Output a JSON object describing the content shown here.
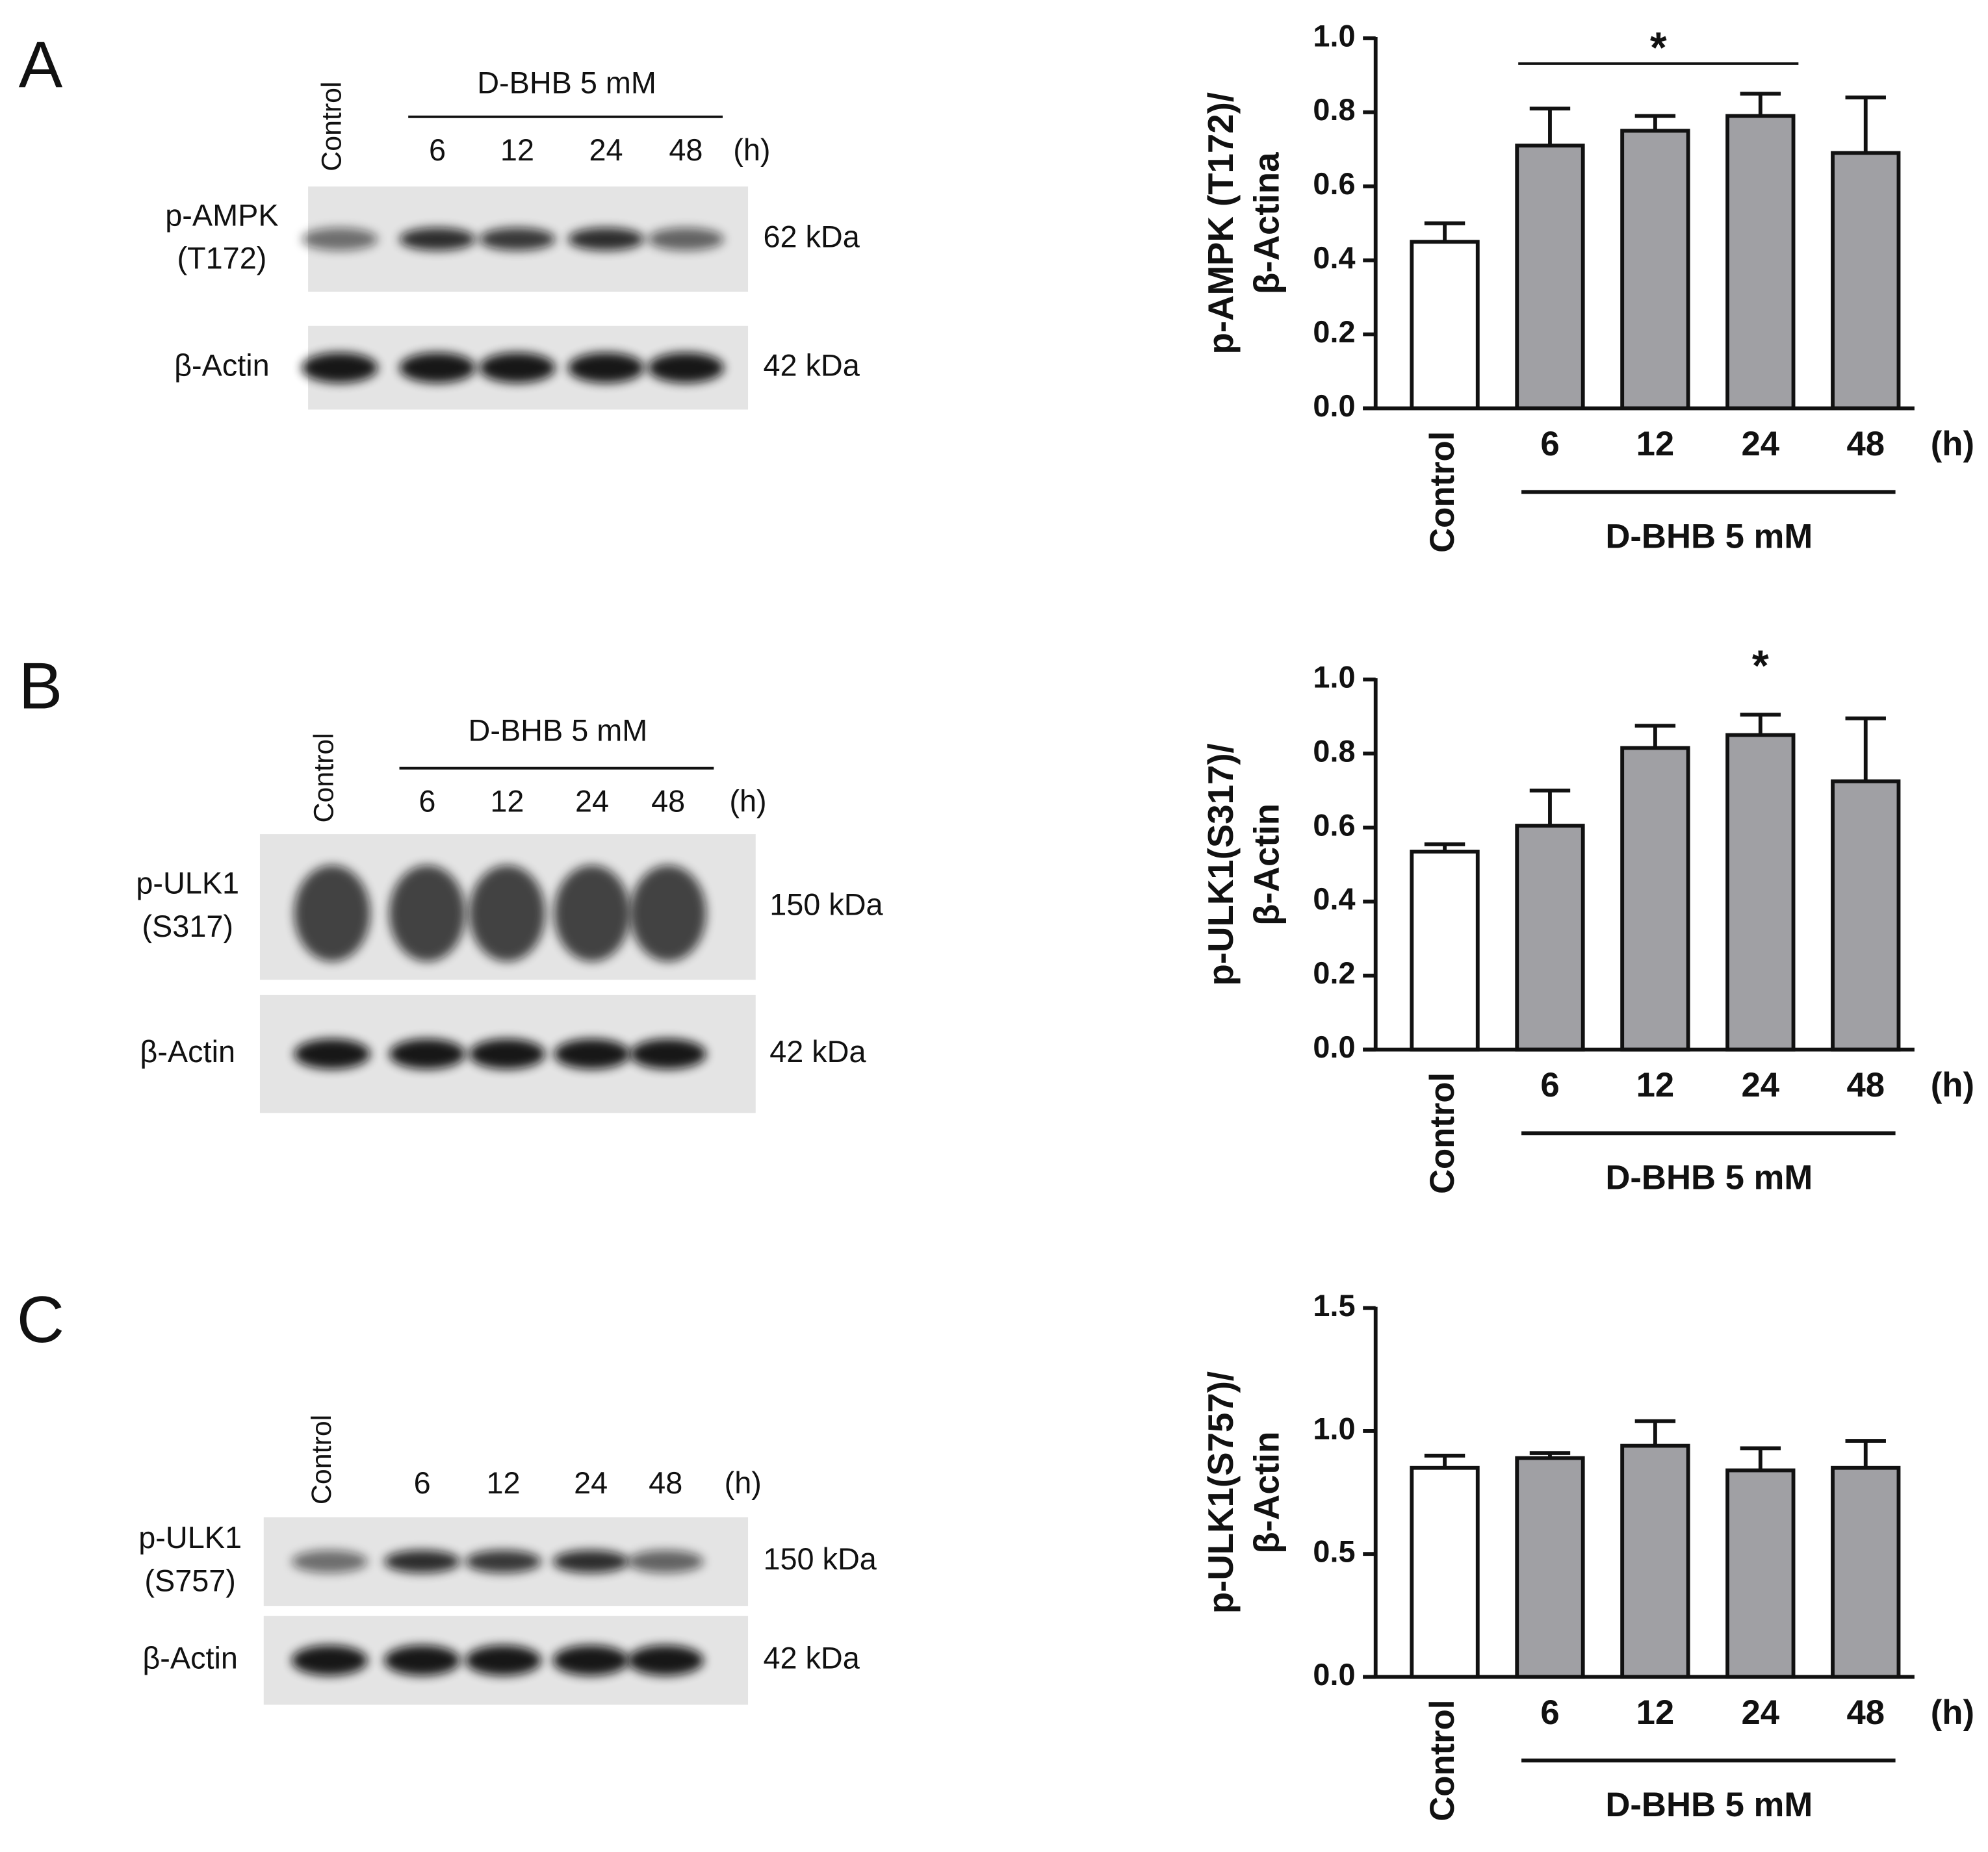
{
  "blots": [
    {
      "panel": "A",
      "lanes": [
        "Control",
        "6",
        "12",
        "24",
        "48"
      ],
      "unit": "(h)",
      "treatment": "D-BHB 5 mM",
      "rows": [
        {
          "label": [
            "p-AMPK",
            "(T172)"
          ],
          "size": "62 kDa"
        },
        {
          "label": [
            "β-Actin"
          ],
          "size": "42 kDa"
        }
      ]
    },
    {
      "panel": "B",
      "lanes": [
        "Control",
        "6",
        "12",
        "24",
        "48"
      ],
      "unit": "(h)",
      "treatment": "D-BHB 5 mM",
      "rows": [
        {
          "label": [
            "p-ULK1",
            "(S317)"
          ],
          "size": "150 kDa"
        },
        {
          "label": [
            "β-Actin"
          ],
          "size": "42 kDa"
        }
      ]
    },
    {
      "panel": "C",
      "lanes": [
        "Control",
        "6",
        "12",
        "24",
        "48"
      ],
      "unit": "(h)",
      "rows": [
        {
          "label": [
            "p-ULK1",
            "(S757)"
          ],
          "size": "150 kDa"
        },
        {
          "label": [
            "β-Actin"
          ],
          "size": "42 kDa"
        }
      ]
    }
  ],
  "chart_data": [
    {
      "type": "bar",
      "y_label": [
        "p-AMPK (T172)/",
        "β-Actina"
      ],
      "x_unit": "(h)",
      "group_label": "D-BHB 5 mM",
      "categories": [
        "Control",
        "6",
        "12",
        "24",
        "48"
      ],
      "values": [
        0.45,
        0.71,
        0.75,
        0.79,
        0.69
      ],
      "errors": [
        0.05,
        0.1,
        0.04,
        0.06,
        0.15
      ],
      "colors": [
        "#ffffff",
        "#a0a0a4",
        "#a0a0a4",
        "#a0a0a4",
        "#a0a0a4"
      ],
      "ylim": [
        0,
        1
      ],
      "yticks": [
        {
          "value": 0,
          "label": "0.0"
        },
        0.2,
        0.4,
        0.6,
        0.8,
        {
          "value": 1,
          "label": "1.0"
        }
      ],
      "annotations": [
        {
          "text": "*",
          "categories": [
            "6",
            "24"
          ]
        }
      ]
    },
    {
      "type": "bar",
      "y_label": [
        "p-ULK1(S317)/",
        "β-Actin"
      ],
      "x_unit": "(h)",
      "group_label": "D-BHB 5 mM",
      "categories": [
        "Control",
        "6",
        "12",
        "24",
        "48"
      ],
      "values": [
        0.535,
        0.605,
        0.815,
        0.85,
        0.725
      ],
      "errors": [
        0.02,
        0.095,
        0.06,
        0.055,
        0.17
      ],
      "colors": [
        "#ffffff",
        "#a0a0a4",
        "#a0a0a4",
        "#a0a0a4",
        "#a0a0a4"
      ],
      "ylim": [
        0,
        1
      ],
      "yticks": [
        {
          "value": 0,
          "label": "0.0"
        },
        0.2,
        0.4,
        0.6,
        0.8,
        {
          "value": 1,
          "label": "1.0"
        }
      ],
      "annotations": [
        {
          "text": "*",
          "categories": [
            "24"
          ]
        }
      ]
    },
    {
      "type": "bar",
      "y_label": [
        "p-ULK1(S757)/",
        "β-Actin"
      ],
      "x_unit": "(h)",
      "group_label": "D-BHB 5 mM",
      "categories": [
        "Control",
        "6",
        "12",
        "24",
        "48"
      ],
      "values": [
        0.85,
        0.89,
        0.94,
        0.84,
        0.85
      ],
      "errors": [
        0.05,
        0.02,
        0.1,
        0.09,
        0.11
      ],
      "colors": [
        "#ffffff",
        "#a0a0a4",
        "#a0a0a4",
        "#a0a0a4",
        "#a0a0a4"
      ],
      "ylim": [
        0,
        1.5
      ],
      "yticks": [
        {
          "value": 0,
          "label": "0.0"
        },
        {
          "value": 0.5,
          "label": "0.5"
        },
        {
          "value": 1,
          "label": "1.0"
        },
        {
          "value": 1.5,
          "label": "1.5"
        }
      ]
    }
  ]
}
